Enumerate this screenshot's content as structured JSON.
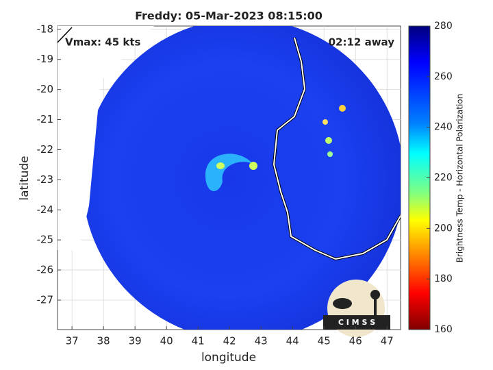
{
  "chart_data": {
    "type": "heatmap",
    "title": "Freddy: 05-Mar-2023 08:15:00",
    "annotations": [
      "Vmax: 45 kts",
      "02:12 away"
    ],
    "x_label": "longitude",
    "y_label": "latitude",
    "xlim": [
      36.54,
      47.43
    ],
    "xticks": [
      37,
      38,
      39,
      40,
      41,
      42,
      43,
      44,
      45,
      46,
      47
    ],
    "ylim": [
      -17.89,
      -27.98
    ],
    "yticks": [
      -18,
      -19,
      -20,
      -21,
      -22,
      -23,
      -24,
      -25,
      -26,
      -27
    ],
    "grid": true,
    "colorbar": {
      "label": "Brightness Temp - Horizontal Polarization",
      "lim": [
        160,
        280
      ],
      "ticks": [
        160,
        180,
        200,
        220,
        240,
        260,
        280
      ]
    },
    "logo": "C I M S S"
  }
}
